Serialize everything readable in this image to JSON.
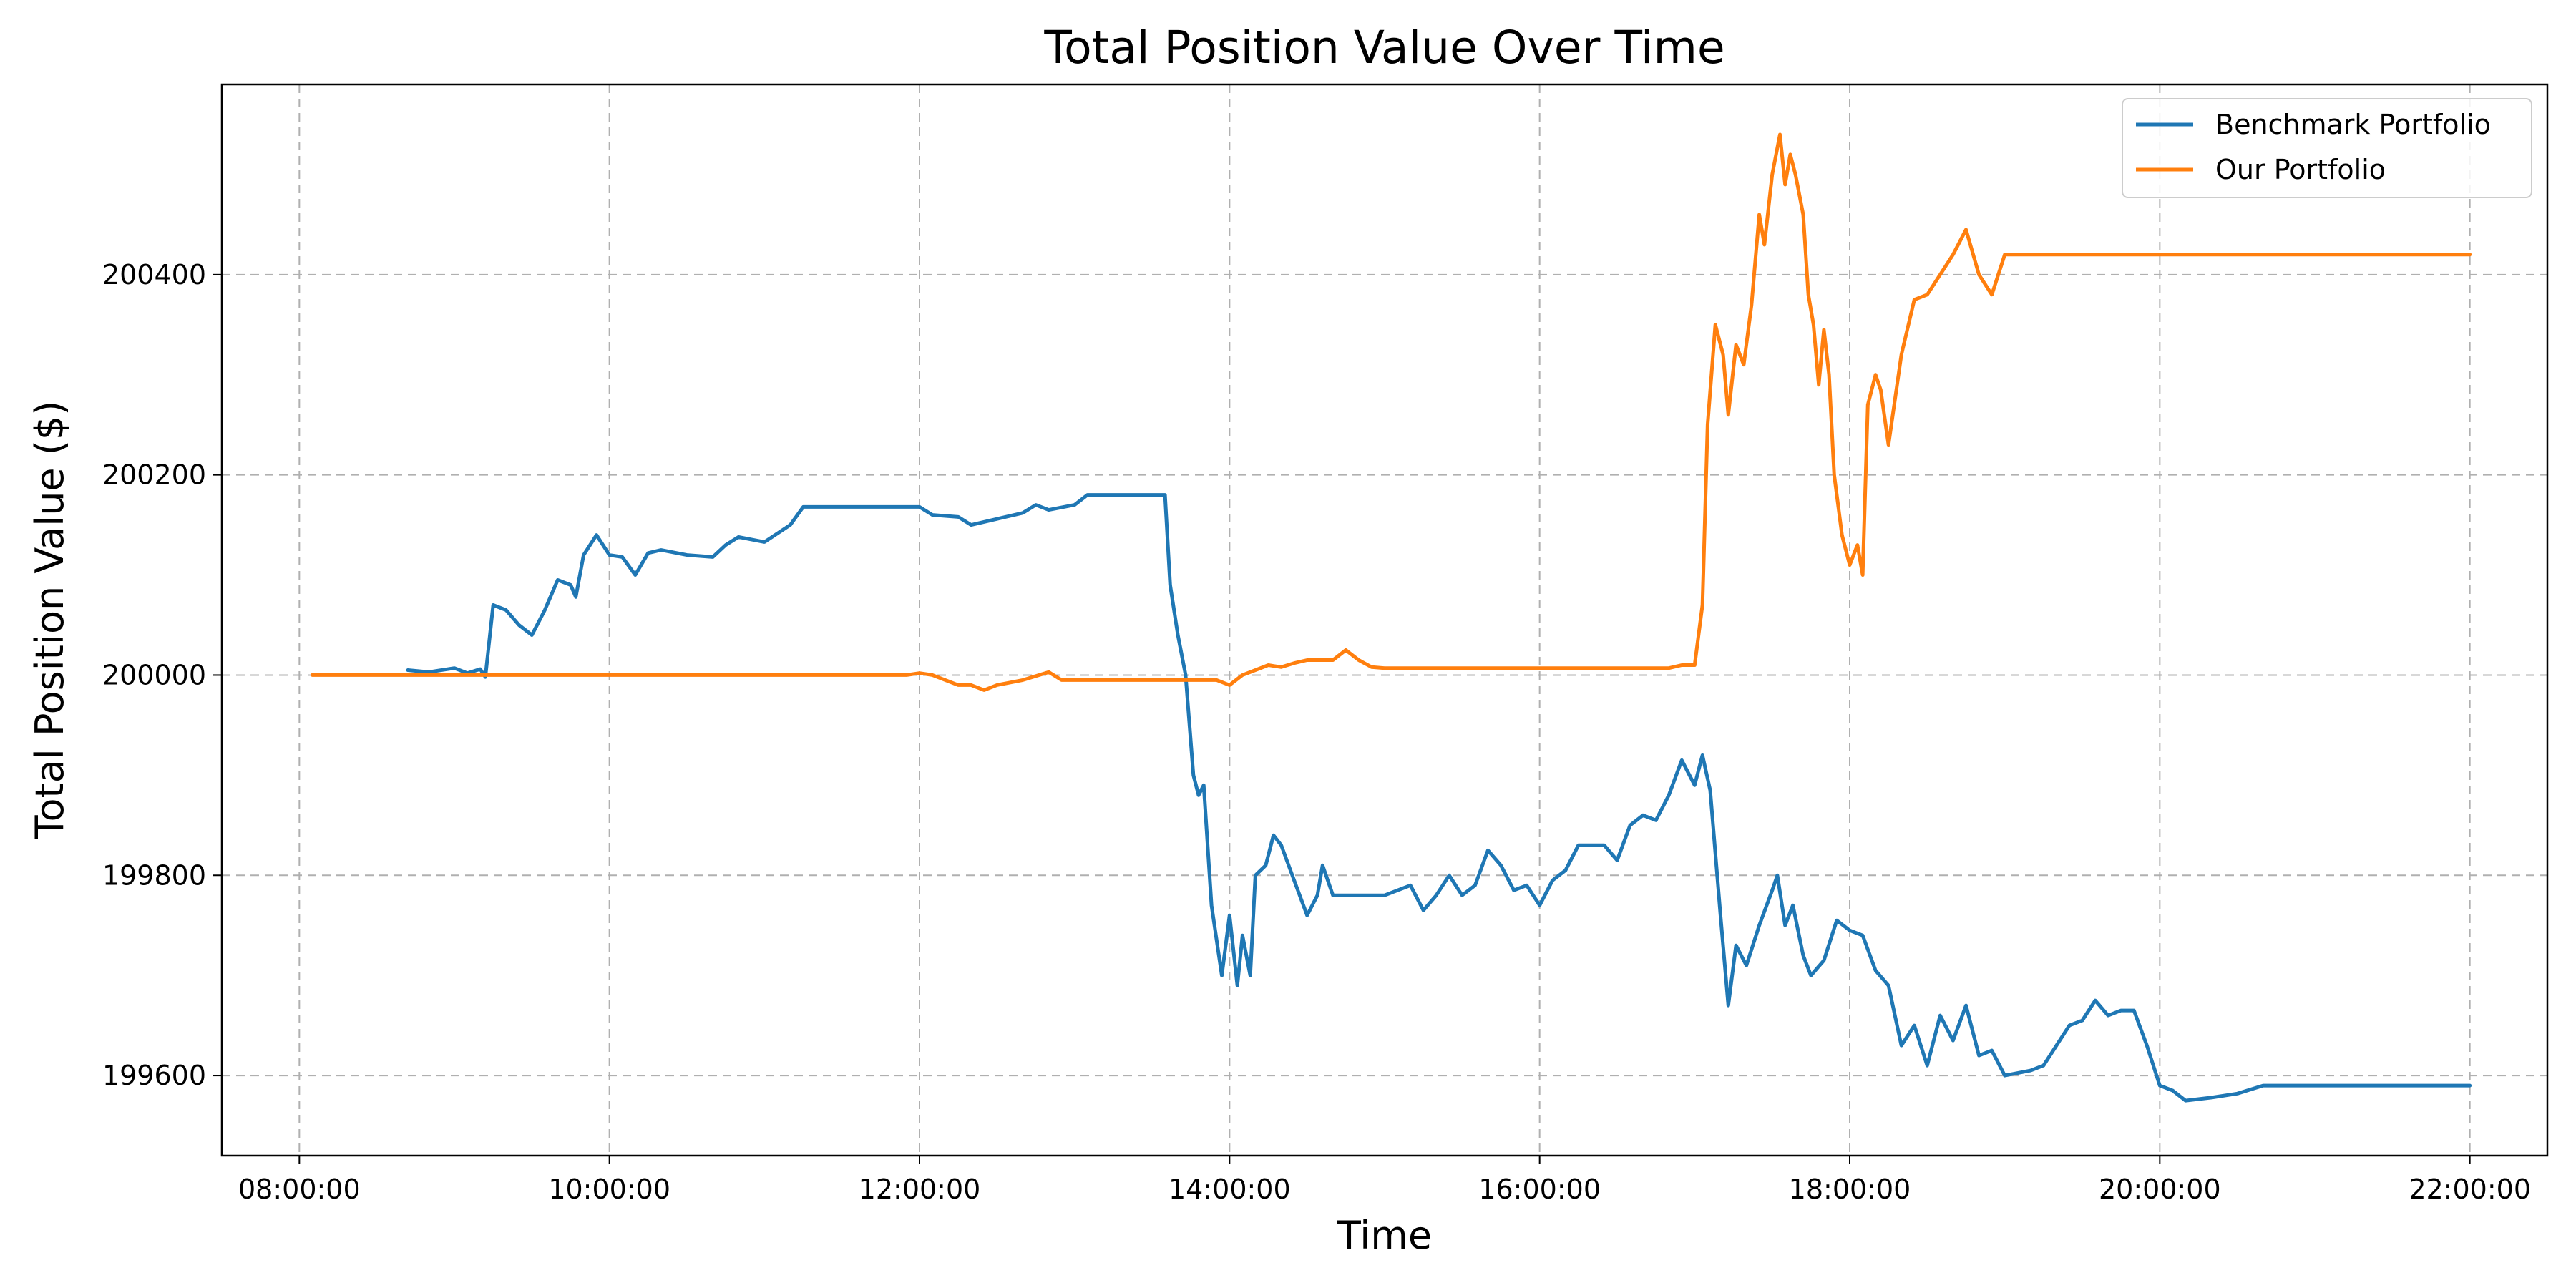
{
  "chart_data": {
    "type": "line",
    "title": "Total Position Value Over Time",
    "xlabel": "Time",
    "ylabel": "Total Position Value ($)",
    "x_ticks": [
      "08:00:00",
      "10:00:00",
      "12:00:00",
      "14:00:00",
      "16:00:00",
      "18:00:00",
      "20:00:00",
      "22:00:00"
    ],
    "y_ticks": [
      199600,
      199800,
      200000,
      200200,
      200400
    ],
    "xlim": [
      "07:30:00",
      "22:30:00"
    ],
    "ylim": [
      199520,
      200590
    ],
    "grid": true,
    "legend_position": "top-right",
    "series": [
      {
        "name": "Benchmark Portfolio",
        "color": "#1f77b4",
        "points": [
          [
            "08:42:00",
            200005
          ],
          [
            "08:50:00",
            200003
          ],
          [
            "09:00:00",
            200007
          ],
          [
            "09:05:00",
            200002
          ],
          [
            "09:10:00",
            200006
          ],
          [
            "09:12:00",
            199998
          ],
          [
            "09:15:00",
            200070
          ],
          [
            "09:20:00",
            200065
          ],
          [
            "09:25:00",
            200050
          ],
          [
            "09:30:00",
            200040
          ],
          [
            "09:35:00",
            200065
          ],
          [
            "09:40:00",
            200095
          ],
          [
            "09:45:00",
            200090
          ],
          [
            "09:47:00",
            200078
          ],
          [
            "09:50:00",
            200120
          ],
          [
            "09:55:00",
            200140
          ],
          [
            "10:00:00",
            200120
          ],
          [
            "10:05:00",
            200118
          ],
          [
            "10:10:00",
            200100
          ],
          [
            "10:15:00",
            200122
          ],
          [
            "10:20:00",
            200125
          ],
          [
            "10:30:00",
            200120
          ],
          [
            "10:40:00",
            200118
          ],
          [
            "10:45:00",
            200130
          ],
          [
            "10:50:00",
            200138
          ],
          [
            "11:00:00",
            200133
          ],
          [
            "11:10:00",
            200150
          ],
          [
            "11:15:00",
            200168
          ],
          [
            "11:30:00",
            200168
          ],
          [
            "12:00:00",
            200168
          ],
          [
            "12:05:00",
            200160
          ],
          [
            "12:15:00",
            200158
          ],
          [
            "12:20:00",
            200150
          ],
          [
            "12:30:00",
            200156
          ],
          [
            "12:40:00",
            200162
          ],
          [
            "12:45:00",
            200170
          ],
          [
            "12:50:00",
            200165
          ],
          [
            "13:00:00",
            200170
          ],
          [
            "13:05:00",
            200180
          ],
          [
            "13:30:00",
            200180
          ],
          [
            "13:35:00",
            200180
          ],
          [
            "13:37:00",
            200090
          ],
          [
            "13:40:00",
            200040
          ],
          [
            "13:43:00",
            200000
          ],
          [
            "13:46:00",
            199900
          ],
          [
            "13:48:00",
            199880
          ],
          [
            "13:50:00",
            199890
          ],
          [
            "13:53:00",
            199770
          ],
          [
            "13:57:00",
            199700
          ],
          [
            "14:00:00",
            199760
          ],
          [
            "14:03:00",
            199690
          ],
          [
            "14:05:00",
            199740
          ],
          [
            "14:08:00",
            199700
          ],
          [
            "14:10:00",
            199800
          ],
          [
            "14:14:00",
            199810
          ],
          [
            "14:17:00",
            199840
          ],
          [
            "14:20:00",
            199830
          ],
          [
            "14:25:00",
            199795
          ],
          [
            "14:30:00",
            199760
          ],
          [
            "14:34:00",
            199780
          ],
          [
            "14:36:00",
            199810
          ],
          [
            "14:40:00",
            199780
          ],
          [
            "15:00:00",
            199780
          ],
          [
            "15:10:00",
            199790
          ],
          [
            "15:15:00",
            199765
          ],
          [
            "15:20:00",
            199780
          ],
          [
            "15:25:00",
            199800
          ],
          [
            "15:30:00",
            199780
          ],
          [
            "15:35:00",
            199790
          ],
          [
            "15:40:00",
            199825
          ],
          [
            "15:45:00",
            199810
          ],
          [
            "15:50:00",
            199785
          ],
          [
            "15:55:00",
            199790
          ],
          [
            "16:00:00",
            199770
          ],
          [
            "16:05:00",
            199795
          ],
          [
            "16:10:00",
            199805
          ],
          [
            "16:15:00",
            199830
          ],
          [
            "16:25:00",
            199830
          ],
          [
            "16:30:00",
            199815
          ],
          [
            "16:35:00",
            199850
          ],
          [
            "16:40:00",
            199860
          ],
          [
            "16:45:00",
            199855
          ],
          [
            "16:50:00",
            199880
          ],
          [
            "16:55:00",
            199915
          ],
          [
            "17:00:00",
            199890
          ],
          [
            "17:03:00",
            199920
          ],
          [
            "17:06:00",
            199885
          ],
          [
            "17:10:00",
            199760
          ],
          [
            "17:13:00",
            199670
          ],
          [
            "17:16:00",
            199730
          ],
          [
            "17:20:00",
            199710
          ],
          [
            "17:25:00",
            199750
          ],
          [
            "17:30:00",
            199785
          ],
          [
            "17:32:00",
            199800
          ],
          [
            "17:35:00",
            199750
          ],
          [
            "17:38:00",
            199770
          ],
          [
            "17:42:00",
            199720
          ],
          [
            "17:45:00",
            199700
          ],
          [
            "17:50:00",
            199715
          ],
          [
            "17:55:00",
            199755
          ],
          [
            "18:00:00",
            199745
          ],
          [
            "18:05:00",
            199740
          ],
          [
            "18:10:00",
            199705
          ],
          [
            "18:15:00",
            199690
          ],
          [
            "18:20:00",
            199630
          ],
          [
            "18:25:00",
            199650
          ],
          [
            "18:30:00",
            199610
          ],
          [
            "18:35:00",
            199660
          ],
          [
            "18:40:00",
            199635
          ],
          [
            "18:45:00",
            199670
          ],
          [
            "18:50:00",
            199620
          ],
          [
            "18:55:00",
            199625
          ],
          [
            "19:00:00",
            199600
          ],
          [
            "19:10:00",
            199605
          ],
          [
            "19:15:00",
            199610
          ],
          [
            "19:20:00",
            199630
          ],
          [
            "19:25:00",
            199650
          ],
          [
            "19:30:00",
            199655
          ],
          [
            "19:35:00",
            199675
          ],
          [
            "19:40:00",
            199660
          ],
          [
            "19:45:00",
            199665
          ],
          [
            "19:50:00",
            199665
          ],
          [
            "19:55:00",
            199630
          ],
          [
            "20:00:00",
            199590
          ],
          [
            "20:05:00",
            199585
          ],
          [
            "20:10:00",
            199575
          ],
          [
            "20:20:00",
            199578
          ],
          [
            "20:30:00",
            199582
          ],
          [
            "20:40:00",
            199590
          ],
          [
            "21:00:00",
            199590
          ],
          [
            "22:00:00",
            199590
          ]
        ]
      },
      {
        "name": "Our Portfolio",
        "color": "#ff7f0e",
        "points": [
          [
            "08:05:00",
            200000
          ],
          [
            "11:55:00",
            200000
          ],
          [
            "12:00:00",
            200002
          ],
          [
            "12:05:00",
            200000
          ],
          [
            "12:10:00",
            199995
          ],
          [
            "12:15:00",
            199990
          ],
          [
            "12:20:00",
            199990
          ],
          [
            "12:25:00",
            199985
          ],
          [
            "12:30:00",
            199990
          ],
          [
            "12:40:00",
            199995
          ],
          [
            "12:50:00",
            200003
          ],
          [
            "12:55:00",
            199995
          ],
          [
            "13:00:00",
            199995
          ],
          [
            "13:55:00",
            199995
          ],
          [
            "14:00:00",
            199990
          ],
          [
            "14:05:00",
            200000
          ],
          [
            "14:10:00",
            200005
          ],
          [
            "14:15:00",
            200010
          ],
          [
            "14:20:00",
            200008
          ],
          [
            "14:25:00",
            200012
          ],
          [
            "14:30:00",
            200015
          ],
          [
            "14:40:00",
            200015
          ],
          [
            "14:45:00",
            200025
          ],
          [
            "14:50:00",
            200015
          ],
          [
            "14:55:00",
            200008
          ],
          [
            "15:00:00",
            200007
          ],
          [
            "16:00:00",
            200007
          ],
          [
            "16:50:00",
            200007
          ],
          [
            "16:55:00",
            200010
          ],
          [
            "17:00:00",
            200010
          ],
          [
            "17:03:00",
            200070
          ],
          [
            "17:05:00",
            200250
          ],
          [
            "17:08:00",
            200350
          ],
          [
            "17:11:00",
            200320
          ],
          [
            "17:13:00",
            200260
          ],
          [
            "17:16:00",
            200330
          ],
          [
            "17:19:00",
            200310
          ],
          [
            "17:22:00",
            200370
          ],
          [
            "17:25:00",
            200460
          ],
          [
            "17:27:00",
            200430
          ],
          [
            "17:30:00",
            200500
          ],
          [
            "17:33:00",
            200540
          ],
          [
            "17:35:00",
            200490
          ],
          [
            "17:37:00",
            200520
          ],
          [
            "17:39:00",
            200500
          ],
          [
            "17:42:00",
            200460
          ],
          [
            "17:44:00",
            200380
          ],
          [
            "17:46:00",
            200350
          ],
          [
            "17:48:00",
            200290
          ],
          [
            "17:50:00",
            200345
          ],
          [
            "17:52:00",
            200300
          ],
          [
            "17:54:00",
            200200
          ],
          [
            "17:57:00",
            200140
          ],
          [
            "18:00:00",
            200110
          ],
          [
            "18:03:00",
            200130
          ],
          [
            "18:05:00",
            200100
          ],
          [
            "18:07:00",
            200270
          ],
          [
            "18:10:00",
            200300
          ],
          [
            "18:12:00",
            200285
          ],
          [
            "18:15:00",
            200230
          ],
          [
            "18:20:00",
            200320
          ],
          [
            "18:25:00",
            200375
          ],
          [
            "18:30:00",
            200380
          ],
          [
            "18:35:00",
            200400
          ],
          [
            "18:40:00",
            200420
          ],
          [
            "18:45:00",
            200445
          ],
          [
            "18:50:00",
            200400
          ],
          [
            "18:55:00",
            200380
          ],
          [
            "19:00:00",
            200420
          ],
          [
            "19:05:00",
            200420
          ],
          [
            "22:00:00",
            200420
          ]
        ]
      }
    ]
  }
}
